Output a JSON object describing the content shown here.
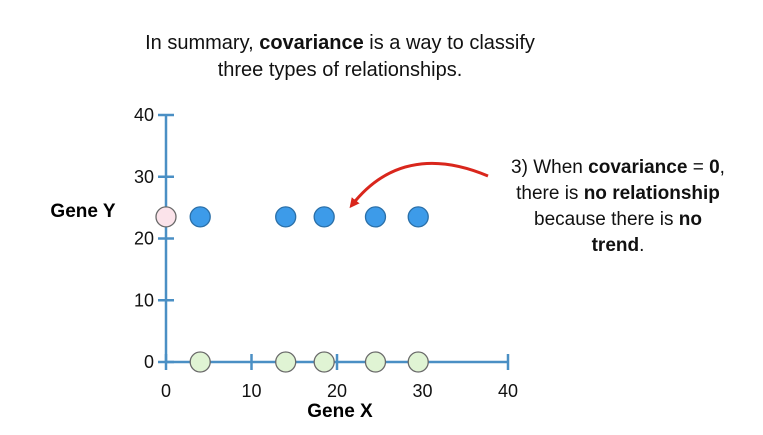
{
  "title": {
    "part1": "In summary, ",
    "bold": "covariance",
    "part2": " is a way to classify three types of relationships."
  },
  "callout": {
    "t1": "3) When ",
    "b1": "covariance",
    "t2": " = ",
    "b2": "0",
    "t3": ",",
    "t4": "there is ",
    "b3": "no relationship",
    "t5": "because there is ",
    "b4": "no",
    "b5": "trend",
    "t6": "."
  },
  "colors": {
    "axis": "#4a8fc4",
    "blue_point": "#3d9be9",
    "blue_point_stroke": "#2a6fa8",
    "pink_point": "#fbe3ea",
    "green_point": "#e0f4d4",
    "point_stroke_light": "#6a6a6a",
    "arrow": "#d9261c"
  },
  "chart_data": {
    "type": "scatter",
    "xlabel": "Gene X",
    "ylabel": "Gene Y",
    "xlim": [
      0,
      40
    ],
    "ylim": [
      0,
      40
    ],
    "x_ticks": [
      0,
      10,
      20,
      30,
      40
    ],
    "y_ticks": [
      0,
      10,
      20,
      30,
      40
    ],
    "series": [
      {
        "color_key": "pink_point",
        "points": [
          [
            0,
            23.5
          ]
        ]
      },
      {
        "color_key": "blue_point",
        "points": [
          [
            4,
            23.5
          ],
          [
            14,
            23.5
          ],
          [
            18.5,
            23.5
          ],
          [
            24.5,
            23.5
          ],
          [
            29.5,
            23.5
          ]
        ]
      },
      {
        "color_key": "green_point",
        "points": [
          [
            4,
            0
          ],
          [
            14,
            0
          ],
          [
            18.5,
            0
          ],
          [
            24.5,
            0
          ],
          [
            29.5,
            0
          ]
        ]
      }
    ]
  }
}
